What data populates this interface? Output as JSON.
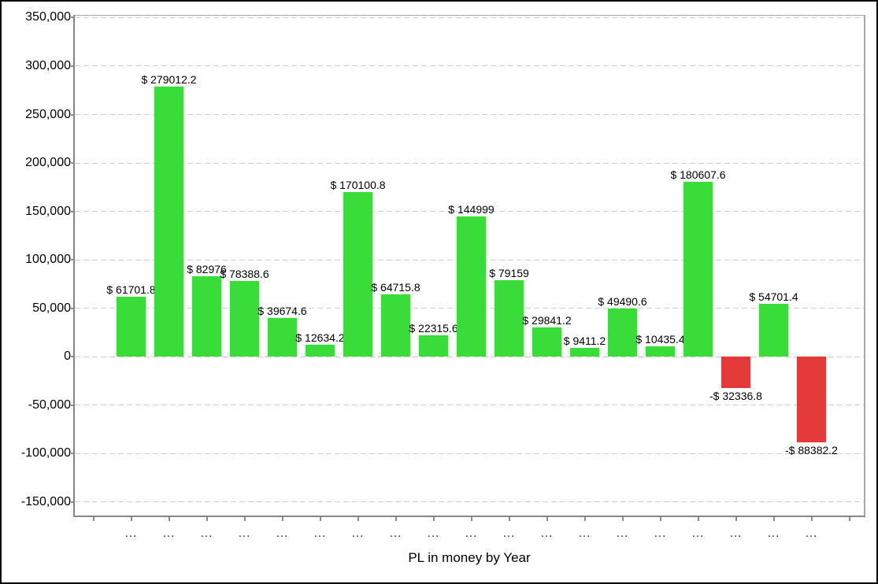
{
  "chart_data": {
    "type": "bar",
    "title": "PL in money by Year",
    "title_position": "bottom",
    "grid": "horizontal-dashed",
    "legend": "none",
    "ylim": [
      -164000,
      352000
    ],
    "y_ticks": [
      350000,
      300000,
      250000,
      200000,
      150000,
      100000,
      50000,
      0,
      -50000,
      -100000,
      -150000
    ],
    "y_tick_labels": [
      "350,000",
      "300,000",
      "250,000",
      "200,000",
      "150,000",
      "100,000",
      "50,000",
      "0",
      "-50,000",
      "-100,000",
      "-150,000"
    ],
    "x_tick_labels": [
      "...",
      "...",
      "...",
      "...",
      "...",
      "...",
      "...",
      "...",
      "...",
      "...",
      "...",
      "...",
      "...",
      "...",
      "...",
      "...",
      "...",
      "...",
      "..."
    ],
    "values": [
      61701.8,
      279012.2,
      82976,
      78388.6,
      39674.6,
      12634.2,
      170100.8,
      64715.8,
      22315.6,
      144999,
      79159,
      29841.2,
      9411.2,
      49490.6,
      10435.4,
      180607.6,
      -32336.8,
      54701.4,
      -88382.2
    ],
    "bar_labels": [
      "$ 61701.8",
      "$ 279012.2",
      "$ 82976",
      "$ 78388.6",
      "$ 39674.6",
      "$ 12634.2",
      "$ 170100.8",
      "$ 64715.8",
      "$ 22315.6",
      "$ 144999",
      "$ 79159",
      "$ 29841.2",
      "$ 9411.2",
      "$ 49490.6",
      "$ 10435.4",
      "$ 180607.6",
      "-$ 32336.8",
      "$ 54701.4",
      "-$ 88382.2"
    ],
    "colors": {
      "positive_bar": "#3adc3a",
      "negative_bar": "#e43a3a",
      "gridline": "#cecece",
      "axis": "#858585",
      "text": "#000000"
    }
  }
}
